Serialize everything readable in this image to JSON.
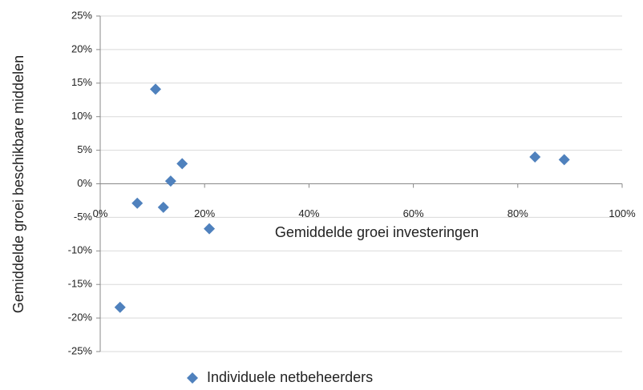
{
  "chart_data": {
    "type": "scatter",
    "x_label": "Gemiddelde groei investeringen",
    "y_label": "Gemiddelde groei beschikbare middelen",
    "series": [
      {
        "name": "Individuele netbeheerders",
        "color": "#4f81bd",
        "x": [
          10.6,
          7.1,
          12.1,
          13.5,
          15.7,
          20.9,
          3.8,
          83.3,
          88.9
        ],
        "values": [
          14.1,
          -2.9,
          -3.5,
          0.4,
          3.0,
          -6.7,
          -18.4,
          4.0,
          3.6
        ]
      }
    ],
    "xlim": [
      0,
      100
    ],
    "xticks": [
      {
        "value": 0,
        "label": "0%"
      },
      {
        "value": 20,
        "label": "20%"
      },
      {
        "value": 40,
        "label": "40%"
      },
      {
        "value": 60,
        "label": "60%"
      },
      {
        "value": 80,
        "label": "80%"
      },
      {
        "value": 100,
        "label": "100%"
      }
    ],
    "ylim": [
      -25,
      25
    ],
    "yticks": [
      {
        "value": -25,
        "label": "-25%"
      },
      {
        "value": -20,
        "label": "-20%"
      },
      {
        "value": -15,
        "label": "-15%"
      },
      {
        "value": -10,
        "label": "-10%"
      },
      {
        "value": -5,
        "label": "-5%"
      },
      {
        "value": 0,
        "label": "0%"
      },
      {
        "value": 5,
        "label": "5%"
      },
      {
        "value": 10,
        "label": "10%"
      },
      {
        "value": 15,
        "label": "15%"
      },
      {
        "value": 20,
        "label": "20%"
      },
      {
        "value": 25,
        "label": "25%"
      }
    ],
    "grid": true,
    "legend": "bottom"
  }
}
